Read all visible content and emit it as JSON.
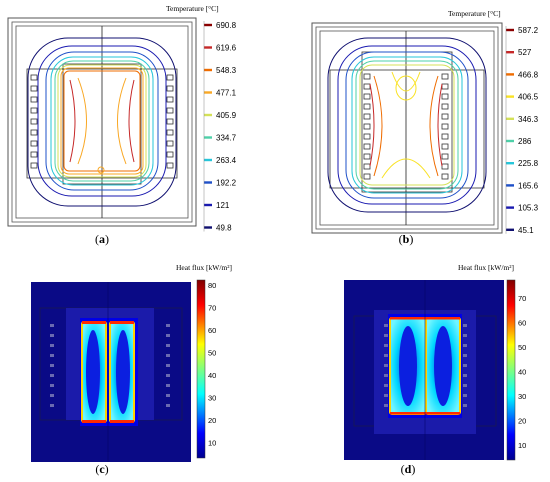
{
  "panels": {
    "a": {
      "caption_open": "(",
      "caption_letter": "a",
      "caption_close": ")",
      "legend_title": "Temperature [°C]",
      "ticks": [
        "690.8",
        "619.6",
        "548.3",
        "477.1",
        "405.9",
        "334.7",
        "263.4",
        "192.2",
        "121",
        "49.8"
      ],
      "colors": [
        "#8b0000",
        "#c62828",
        "#ef6c00",
        "#f9a825",
        "#d4e157",
        "#4dd0a8",
        "#26c6da",
        "#1e50c8",
        "#1a1ab0",
        "#101070"
      ]
    },
    "b": {
      "caption_open": "(",
      "caption_letter": "b",
      "caption_close": ")",
      "legend_title": "Temperature [°C]",
      "ticks": [
        "587.2",
        "527",
        "466.8",
        "406.5",
        "346.3",
        "286",
        "225.8",
        "165.6",
        "105.3",
        "45.1"
      ],
      "colors": [
        "#8b0000",
        "#c62828",
        "#ef6c00",
        "#f9e225",
        "#d4e157",
        "#4dd0a8",
        "#26c6da",
        "#1e50c8",
        "#1a1ab0",
        "#101070"
      ]
    },
    "c": {
      "caption_open": "(",
      "caption_letter": "c",
      "caption_close": ")",
      "legend_title": "Heat flux [kW/m²]",
      "ticks": [
        "80",
        "70",
        "60",
        "50",
        "40",
        "30",
        "20",
        "10"
      ]
    },
    "d": {
      "caption_open": "(",
      "caption_letter": "d",
      "caption_close": ")",
      "legend_title": "Heat flux [kW/m²]",
      "ticks": [
        "70",
        "60",
        "50",
        "40",
        "30",
        "20",
        "10"
      ]
    }
  }
}
